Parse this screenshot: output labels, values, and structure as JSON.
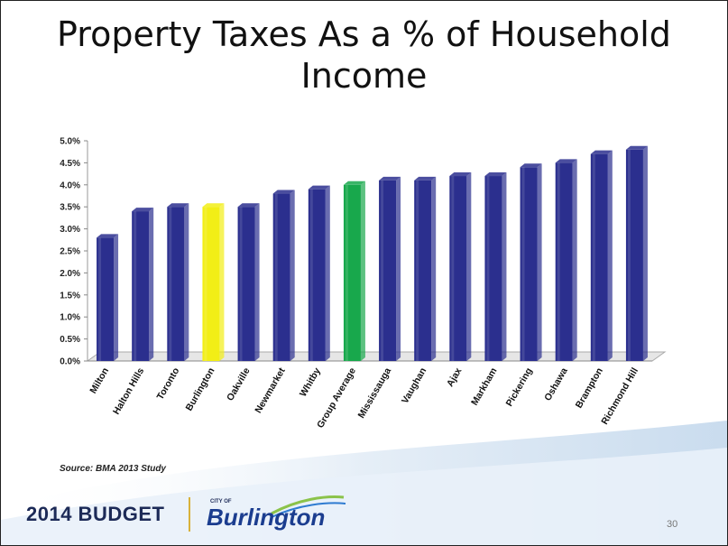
{
  "slide": {
    "source": "Source: BMA 2013 Study",
    "budget_label": "2014 BUDGET",
    "city_of": "CITY OF",
    "city_name": "Burlington",
    "page_number": "30"
  },
  "colors": {
    "bar_default": "#2b2f8e",
    "bar_burlington": "#f2ee16",
    "bar_average": "#18a84c",
    "logo_navy": "#1c2a57",
    "logo_blue": "#1b3d8f"
  },
  "chart_data": {
    "type": "bar",
    "title": "Property Taxes As a % of Household Income",
    "xlabel": "",
    "ylabel": "",
    "ylim": [
      0,
      5
    ],
    "yticks": [
      "0.0%",
      "0.5%",
      "1.0%",
      "1.5%",
      "2.0%",
      "2.5%",
      "3.0%",
      "3.5%",
      "4.0%",
      "4.5%",
      "5.0%"
    ],
    "categories": [
      "Milton",
      "Halton Hills",
      "Toronto",
      "Burlington",
      "Oakville",
      "Newmarket",
      "Whitby",
      "Group Average",
      "Mississauga",
      "Vaughan",
      "Ajax",
      "Markham",
      "Pickering",
      "Oshawa",
      "Brampton",
      "Richmond Hill"
    ],
    "values": [
      2.8,
      3.4,
      3.5,
      3.5,
      3.5,
      3.8,
      3.9,
      4.0,
      4.1,
      4.1,
      4.2,
      4.2,
      4.4,
      4.5,
      4.7,
      4.8
    ],
    "highlight": {
      "Burlington": "#f2ee16",
      "Group Average": "#18a84c"
    },
    "grid": false,
    "legend": "none"
  }
}
